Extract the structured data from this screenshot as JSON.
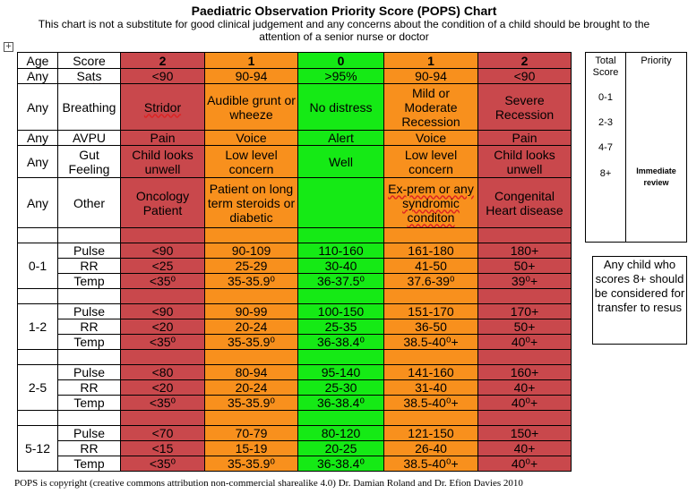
{
  "title": "Paediatric Observation Priority Score (POPS) Chart",
  "subtitle": "This chart is not a substitute for good clinical judgement and any concerns about the condition of a child should be brought to the attention of a senior nurse or doctor",
  "header": {
    "age": "Age",
    "score": "Score",
    "scores": [
      "2",
      "1",
      "0",
      "1",
      "2"
    ]
  },
  "rows": [
    {
      "age": "Any",
      "param": "Sats",
      "values": [
        "<90",
        "90-94",
        ">95%",
        "90-94",
        "<90"
      ]
    },
    {
      "age": "Any",
      "param": "Breathing",
      "values": [
        "Stridor",
        "Audible grunt or wheeze",
        "No distress",
        "Mild or Moderate Recession",
        "Severe Recession"
      ]
    },
    {
      "age": "Any",
      "param": "AVPU",
      "values": [
        "Pain",
        "Voice",
        "Alert",
        "Voice",
        "Pain"
      ]
    },
    {
      "age": "Any",
      "param": "Gut Feeling",
      "values": [
        "Child looks unwell",
        "Low level concern",
        "Well",
        "Low level concern",
        "Child looks unwell"
      ]
    },
    {
      "age": "Any",
      "param": "Other",
      "values": [
        "Oncology Patient",
        "Patient on long term steroids or diabetic",
        "",
        "Ex-prem or any syndromic conditon",
        "Congenital Heart disease"
      ]
    }
  ],
  "age_groups": [
    {
      "age": "0-1",
      "rows": [
        {
          "param": "Pulse",
          "values": [
            "<90",
            "90-109",
            "110-160",
            "161-180",
            "180+"
          ]
        },
        {
          "param": "RR",
          "values": [
            "<25",
            "25-29",
            "30-40",
            "41-50",
            "50+"
          ]
        },
        {
          "param": "Temp",
          "values": [
            "<35⁰",
            "35-35.9⁰",
            "36-37.5⁰",
            "37.6-39⁰",
            "39⁰+"
          ]
        }
      ]
    },
    {
      "age": "1-2",
      "rows": [
        {
          "param": "Pulse",
          "values": [
            "<90",
            "90-99",
            "100-150",
            "151-170",
            "170+"
          ]
        },
        {
          "param": "RR",
          "values": [
            "<20",
            "20-24",
            "25-35",
            "36-50",
            "50+"
          ]
        },
        {
          "param": "Temp",
          "values": [
            "<35⁰",
            "35-35.9⁰",
            "36-38.4⁰",
            "38.5-40⁰+",
            "40⁰+"
          ]
        }
      ]
    },
    {
      "age": "2-5",
      "rows": [
        {
          "param": "Pulse",
          "values": [
            "<80",
            "80-94",
            "95-140",
            "141-160",
            "160+"
          ]
        },
        {
          "param": "RR",
          "values": [
            "<20",
            "20-24",
            "25-30",
            "31-40",
            "40+"
          ]
        },
        {
          "param": "Temp",
          "values": [
            "<35⁰",
            "35-35.9⁰",
            "36-38.4⁰",
            "38.5-40⁰+",
            "40⁰+"
          ]
        }
      ]
    },
    {
      "age": "5-12",
      "rows": [
        {
          "param": "Pulse",
          "values": [
            "<70",
            "70-79",
            "80-120",
            "121-150",
            "150+"
          ]
        },
        {
          "param": "RR",
          "values": [
            "<15",
            "15-19",
            "20-25",
            "26-40",
            "40+"
          ]
        },
        {
          "param": "Temp",
          "values": [
            "<35⁰",
            "35-35.9⁰",
            "36-38.4⁰",
            "38.5-40⁰+",
            "40⁰+"
          ]
        }
      ]
    }
  ],
  "priority_table": {
    "total_score_label": "Total Score",
    "priority_label": "Priority",
    "ranges": [
      "0-1",
      "2-3",
      "4-7",
      "8+"
    ],
    "immediate": "Immediate review"
  },
  "note": "Any child who scores 8+ should be considered for transfer to resus",
  "footer": "POPS is copyright (creative commons attribution non-commercial sharealike 4.0) Dr. Damian Roland and Dr. Efion Davies 2010",
  "colors": {
    "score_2": "#c9484c",
    "score_1": "#f8901d",
    "score_0": "#15ea15"
  }
}
